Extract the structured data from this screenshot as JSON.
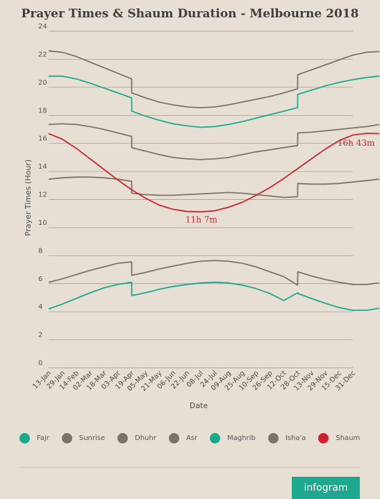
{
  "chart_data": {
    "type": "line",
    "title": "Prayer Times & Shaum Duration - Melbourne 2018",
    "xlabel": "Date",
    "ylabel": "Prayer Times (Hour)",
    "ylim": [
      0,
      24
    ],
    "yticks": [
      0,
      2,
      4,
      6,
      8,
      10,
      12,
      14,
      16,
      18,
      20,
      22,
      24
    ],
    "grid": true,
    "legend_position": "bottom",
    "categories": [
      "13-Jan",
      "29-Jan",
      "14-Feb",
      "02-Mar",
      "18-Mar",
      "03-Apr",
      "19-Apr",
      "05-May",
      "21-May",
      "06-Jun",
      "22-Jun",
      "08-Jul",
      "24-Jul",
      "09-Aug",
      "25-Aug",
      "10-Sep",
      "26-Sep",
      "12-Oct",
      "28-Oct",
      "13-Nov",
      "29-Nov",
      "15-Dec",
      "31-Dec"
    ],
    "series": [
      {
        "name": "Fajr",
        "color": "#1aa88e",
        "values": [
          [
            0,
            4.2
          ],
          [
            1,
            4.55
          ],
          [
            2,
            4.95
          ],
          [
            3,
            5.35
          ],
          [
            4,
            5.7
          ],
          [
            5,
            5.95
          ],
          [
            6,
            6.1
          ],
          [
            6.01,
            5.15
          ],
          [
            7,
            5.35
          ],
          [
            8,
            5.6
          ],
          [
            9,
            5.8
          ],
          [
            10,
            5.95
          ],
          [
            11,
            6.05
          ],
          [
            12,
            6.1
          ],
          [
            13,
            6.05
          ],
          [
            14,
            5.9
          ],
          [
            15,
            5.65
          ],
          [
            16,
            5.3
          ],
          [
            17,
            4.8
          ],
          [
            18,
            5.35
          ],
          [
            18.01,
            5.3
          ],
          [
            19,
            4.95
          ],
          [
            20,
            4.6
          ],
          [
            21,
            4.3
          ],
          [
            22,
            4.1
          ],
          [
            23,
            4.1
          ],
          [
            23.9,
            4.25
          ]
        ]
      },
      {
        "name": "Sunrise",
        "color": "#7b7364",
        "values": [
          [
            0,
            6.1
          ],
          [
            1,
            6.35
          ],
          [
            2,
            6.65
          ],
          [
            3,
            6.95
          ],
          [
            4,
            7.2
          ],
          [
            5,
            7.45
          ],
          [
            6,
            7.55
          ],
          [
            6.01,
            6.6
          ],
          [
            7,
            6.8
          ],
          [
            8,
            7.05
          ],
          [
            9,
            7.25
          ],
          [
            10,
            7.45
          ],
          [
            11,
            7.6
          ],
          [
            12,
            7.65
          ],
          [
            13,
            7.6
          ],
          [
            14,
            7.45
          ],
          [
            15,
            7.2
          ],
          [
            16,
            6.85
          ],
          [
            17,
            6.5
          ],
          [
            18,
            5.9
          ],
          [
            18.01,
            6.85
          ],
          [
            19,
            6.55
          ],
          [
            20,
            6.3
          ],
          [
            21,
            6.1
          ],
          [
            22,
            5.95
          ],
          [
            23,
            5.95
          ],
          [
            23.9,
            6.05
          ]
        ]
      },
      {
        "name": "Dhuhr",
        "color": "#7b7364",
        "values": [
          [
            0,
            13.45
          ],
          [
            1,
            13.55
          ],
          [
            2,
            13.6
          ],
          [
            3,
            13.6
          ],
          [
            4,
            13.55
          ],
          [
            5,
            13.45
          ],
          [
            6,
            13.3
          ],
          [
            6.01,
            12.45
          ],
          [
            7,
            12.35
          ],
          [
            8,
            12.3
          ],
          [
            9,
            12.3
          ],
          [
            10,
            12.35
          ],
          [
            11,
            12.4
          ],
          [
            12,
            12.45
          ],
          [
            13,
            12.5
          ],
          [
            14,
            12.45
          ],
          [
            15,
            12.35
          ],
          [
            16,
            12.25
          ],
          [
            17,
            12.15
          ],
          [
            18,
            12.2
          ],
          [
            18.01,
            13.15
          ],
          [
            19,
            13.1
          ],
          [
            20,
            13.1
          ],
          [
            21,
            13.15
          ],
          [
            22,
            13.25
          ],
          [
            23,
            13.35
          ],
          [
            23.9,
            13.45
          ]
        ]
      },
      {
        "name": "Asr",
        "color": "#7b7364",
        "values": [
          [
            0,
            17.35
          ],
          [
            1,
            17.4
          ],
          [
            2,
            17.35
          ],
          [
            3,
            17.2
          ],
          [
            4,
            17.0
          ],
          [
            5,
            16.75
          ],
          [
            6,
            16.5
          ],
          [
            6.01,
            15.7
          ],
          [
            7,
            15.45
          ],
          [
            8,
            15.2
          ],
          [
            9,
            15.0
          ],
          [
            10,
            14.9
          ],
          [
            11,
            14.85
          ],
          [
            12,
            14.9
          ],
          [
            13,
            15.0
          ],
          [
            14,
            15.2
          ],
          [
            15,
            15.4
          ],
          [
            16,
            15.55
          ],
          [
            17,
            15.7
          ],
          [
            18,
            15.85
          ],
          [
            18.01,
            16.75
          ],
          [
            19,
            16.8
          ],
          [
            20,
            16.9
          ],
          [
            21,
            17.0
          ],
          [
            22,
            17.1
          ],
          [
            23,
            17.2
          ],
          [
            23.9,
            17.35
          ]
        ]
      },
      {
        "name": "Maghrib",
        "color": "#1aa88e",
        "values": [
          [
            0,
            20.8
          ],
          [
            1,
            20.8
          ],
          [
            2,
            20.6
          ],
          [
            3,
            20.3
          ],
          [
            4,
            19.95
          ],
          [
            5,
            19.6
          ],
          [
            6,
            19.25
          ],
          [
            6.01,
            18.3
          ],
          [
            7,
            17.95
          ],
          [
            8,
            17.65
          ],
          [
            9,
            17.4
          ],
          [
            10,
            17.25
          ],
          [
            11,
            17.15
          ],
          [
            12,
            17.2
          ],
          [
            13,
            17.35
          ],
          [
            14,
            17.55
          ],
          [
            15,
            17.8
          ],
          [
            16,
            18.05
          ],
          [
            17,
            18.3
          ],
          [
            18,
            18.55
          ],
          [
            18.01,
            19.5
          ],
          [
            19,
            19.8
          ],
          [
            20,
            20.1
          ],
          [
            21,
            20.35
          ],
          [
            22,
            20.55
          ],
          [
            23,
            20.7
          ],
          [
            23.9,
            20.8
          ]
        ]
      },
      {
        "name": "Isha'a",
        "color": "#7b7364",
        "values": [
          [
            0,
            22.6
          ],
          [
            1,
            22.5
          ],
          [
            2,
            22.2
          ],
          [
            3,
            21.8
          ],
          [
            4,
            21.4
          ],
          [
            5,
            21.0
          ],
          [
            6,
            20.6
          ],
          [
            6.01,
            19.6
          ],
          [
            7,
            19.25
          ],
          [
            8,
            18.95
          ],
          [
            9,
            18.75
          ],
          [
            10,
            18.6
          ],
          [
            11,
            18.55
          ],
          [
            12,
            18.6
          ],
          [
            13,
            18.75
          ],
          [
            14,
            18.95
          ],
          [
            15,
            19.15
          ],
          [
            16,
            19.35
          ],
          [
            17,
            19.6
          ],
          [
            18,
            19.9
          ],
          [
            18.01,
            20.9
          ],
          [
            19,
            21.25
          ],
          [
            20,
            21.6
          ],
          [
            21,
            21.95
          ],
          [
            22,
            22.3
          ],
          [
            23,
            22.5
          ],
          [
            23.9,
            22.55
          ]
        ]
      },
      {
        "name": "Shaum",
        "color": "#d0222c",
        "values": [
          [
            0,
            16.7
          ],
          [
            1,
            16.3
          ],
          [
            2,
            15.65
          ],
          [
            3,
            14.9
          ],
          [
            4,
            14.15
          ],
          [
            5,
            13.4
          ],
          [
            6,
            12.7
          ],
          [
            7,
            12.1
          ],
          [
            8,
            11.6
          ],
          [
            9,
            11.3
          ],
          [
            10,
            11.15
          ],
          [
            11,
            11.12
          ],
          [
            12,
            11.2
          ],
          [
            13,
            11.45
          ],
          [
            14,
            11.8
          ],
          [
            15,
            12.3
          ],
          [
            16,
            12.85
          ],
          [
            17,
            13.5
          ],
          [
            18,
            14.2
          ],
          [
            19,
            14.9
          ],
          [
            20,
            15.6
          ],
          [
            21,
            16.2
          ],
          [
            22,
            16.6
          ],
          [
            23,
            16.72
          ],
          [
            23.9,
            16.7
          ]
        ]
      }
    ],
    "annotations": [
      {
        "text": "11h 7m",
        "x": 11,
        "y": 11.12
      },
      {
        "text": "16h 43m",
        "x": 23,
        "y": 16.72
      }
    ]
  },
  "branding": {
    "label": "infogram"
  }
}
